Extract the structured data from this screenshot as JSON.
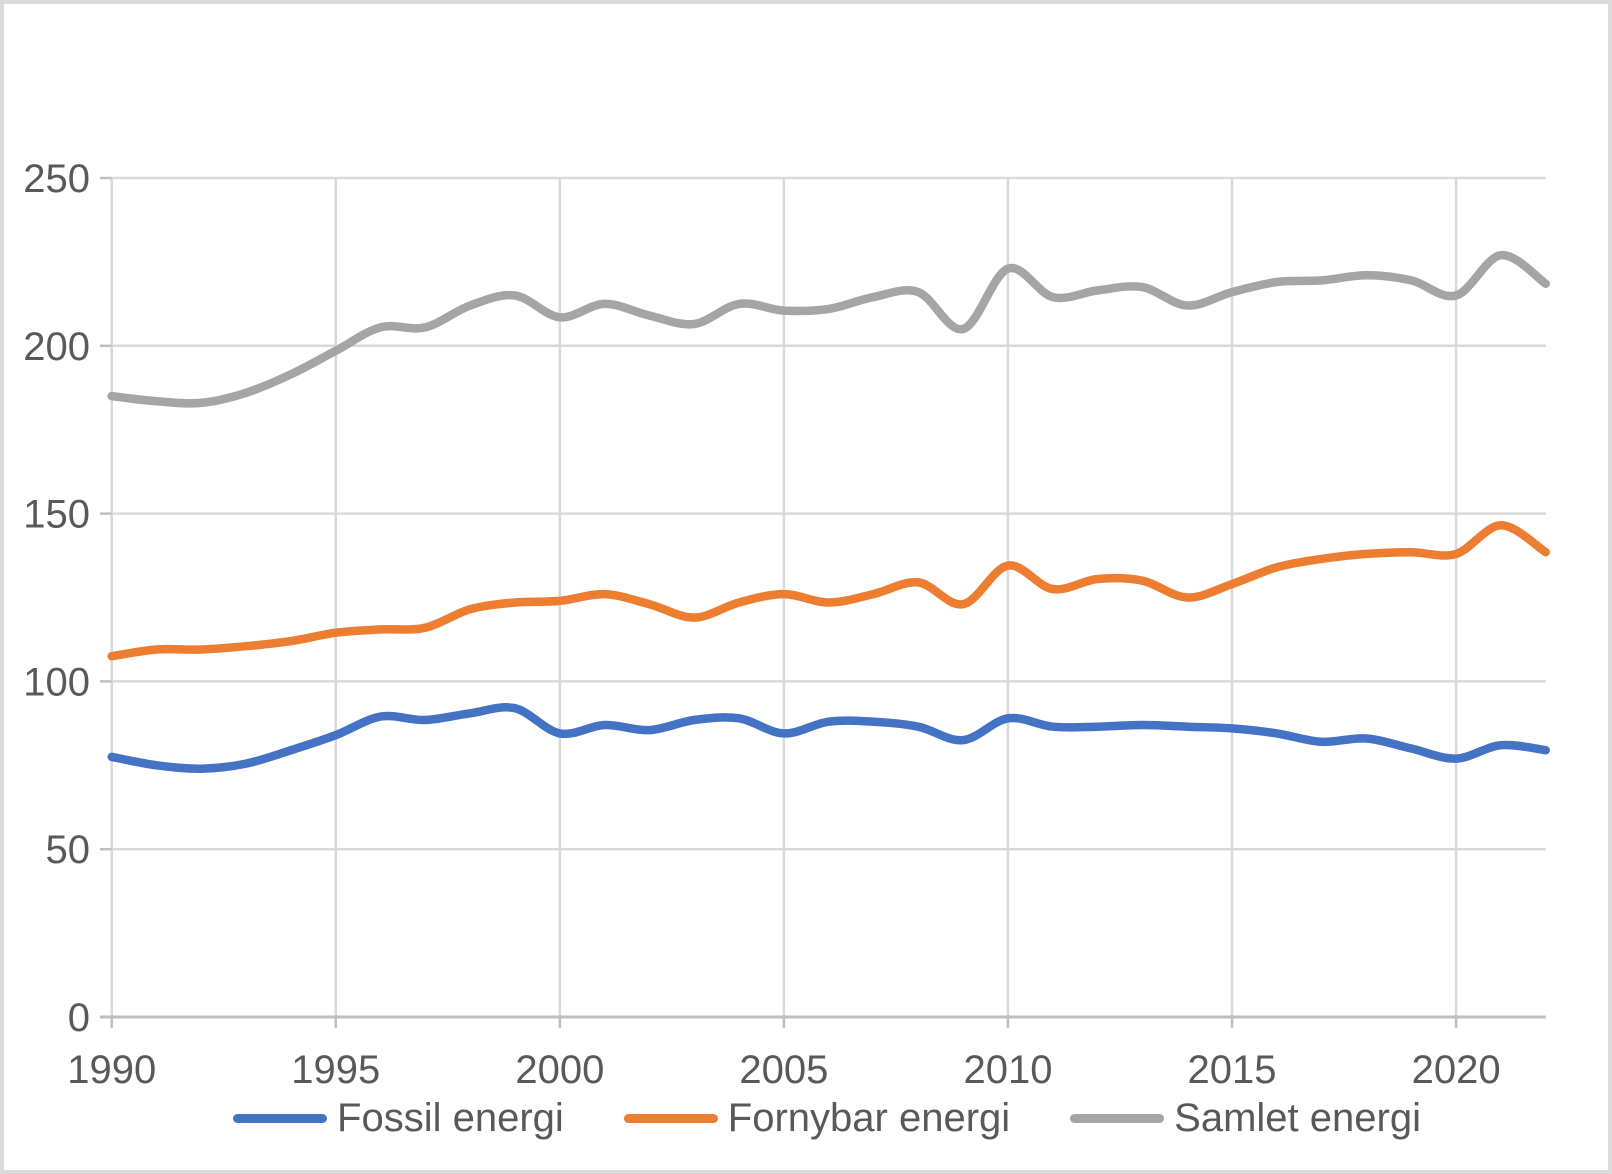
{
  "chart_data": {
    "type": "line",
    "title": "",
    "xlabel": "",
    "ylabel": "",
    "x": [
      1990,
      1991,
      1992,
      1993,
      1994,
      1995,
      1996,
      1997,
      1998,
      1999,
      2000,
      2001,
      2002,
      2003,
      2004,
      2005,
      2006,
      2007,
      2008,
      2009,
      2010,
      2011,
      2012,
      2013,
      2014,
      2015,
      2016,
      2017,
      2018,
      2019,
      2020,
      2021,
      2022
    ],
    "series": [
      {
        "name": "Fossil energi",
        "color": "#4472C4",
        "values": [
          77.5,
          75,
          74,
          75.5,
          79.5,
          84,
          89.5,
          88.5,
          90.5,
          92,
          84.5,
          87,
          85.5,
          88.5,
          89,
          84.5,
          88,
          88,
          86.5,
          82.5,
          89,
          86.5,
          86.5,
          87,
          86.5,
          86,
          84.5,
          82,
          83,
          80,
          77,
          81,
          79.5
        ]
      },
      {
        "name": "Fornybar energi",
        "color": "#ED7D31",
        "values": [
          107.5,
          109.5,
          109.5,
          110.5,
          112,
          114.5,
          115.5,
          116,
          121.5,
          123.5,
          124,
          126,
          123,
          119,
          123.5,
          126,
          123.5,
          126,
          129.5,
          123,
          134.5,
          127.5,
          130.5,
          130,
          125,
          129,
          134,
          136.5,
          138,
          138.5,
          138,
          146.5,
          138.5
        ]
      },
      {
        "name": "Samlet energi",
        "color": "#A5A5A5",
        "values": [
          185,
          183.5,
          183,
          186,
          191.5,
          198.5,
          205.5,
          205.5,
          212,
          215,
          208.5,
          212.5,
          209,
          206.5,
          212.5,
          210.5,
          211,
          214.5,
          216,
          205,
          223,
          214.5,
          216.5,
          217.5,
          212,
          216,
          219,
          219.5,
          221,
          219.5,
          215,
          227,
          218.5
        ]
      }
    ],
    "ylim": [
      0,
      250
    ],
    "y_ticks": [
      0,
      50,
      100,
      150,
      200,
      250
    ],
    "x_ticks": [
      1990,
      1995,
      2000,
      2005,
      2010,
      2015,
      2020
    ],
    "grid": true,
    "legend_position": "bottom",
    "style": {
      "gridline_color": "#D9D9D9",
      "axis_color": "#BFBFBF",
      "tick_label_color": "#595959",
      "line_width": 8.5,
      "smooth": true
    }
  }
}
